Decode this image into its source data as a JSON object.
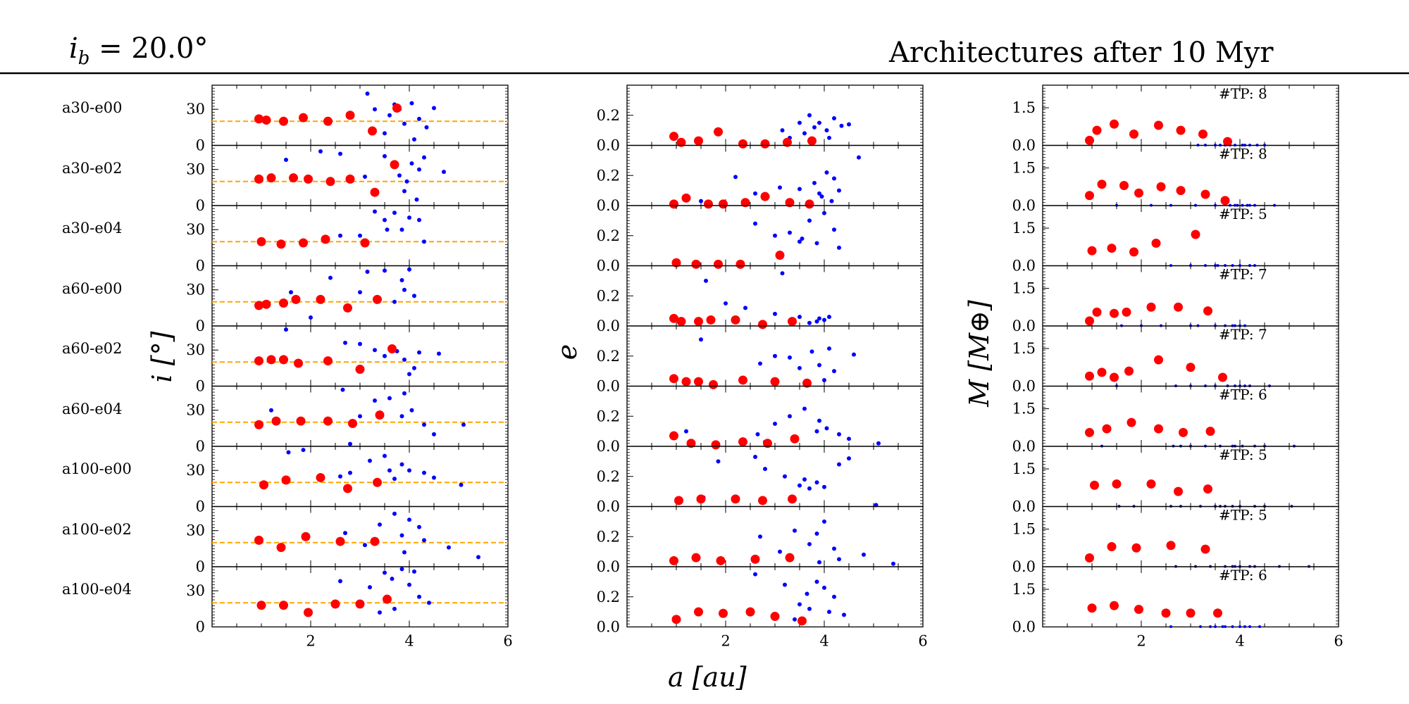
{
  "header": {
    "left_symbol": "i",
    "left_subscript": "b",
    "left_value": "= 20.0°",
    "right_title": "Architectures after 10 Myr"
  },
  "colors": {
    "planet": "#ff0000",
    "test_particle": "#0000ff",
    "reference_line": "#ffa500"
  },
  "row_labels": [
    "a30-e00",
    "a30-e02",
    "a30-e04",
    "a60-e00",
    "a60-e02",
    "a60-e04",
    "a100-e00",
    "a100-e02",
    "a100-e04"
  ],
  "axis_labels": {
    "incl_ylabel": "i [°]",
    "ecc_ylabel": "e",
    "mass_ylabel": "M [M⊕]",
    "xlabel": "a [au]"
  },
  "chart_data": {
    "type": "scatter",
    "title": "Architectures after 10 Myr",
    "subtitle": "i_b = 20.0°",
    "xlabel": "a [au]",
    "xlim": [
      0,
      6
    ],
    "xticks": [
      2,
      4,
      6
    ],
    "reference_inclination_deg": 20,
    "panels": {
      "inclination": {
        "ylabel": "i [°]",
        "ylim": [
          0,
          50
        ],
        "yticks": [
          0,
          30
        ],
        "ytick_labels": [
          "0",
          "30"
        ]
      },
      "eccentricity": {
        "ylabel": "e",
        "ylim": [
          0,
          0.4
        ],
        "yticks": [
          0,
          0.2
        ],
        "ytick_labels": [
          "0.0",
          "0.2"
        ]
      },
      "mass": {
        "ylabel": "M [M⊕]",
        "ylim": [
          0,
          2.4
        ],
        "yticks": [
          0,
          1.5
        ],
        "ytick_labels": [
          "0.0",
          "1.5"
        ]
      }
    },
    "simulations": [
      {
        "name": "a30-e00",
        "tp_label": "#TP: 8",
        "planets": [
          [
            0.95,
            22,
            0.06,
            0.2
          ],
          [
            1.1,
            21,
            0.02,
            0.6
          ],
          [
            1.45,
            20,
            0.03,
            0.85
          ],
          [
            1.85,
            23,
            0.09,
            0.45
          ],
          [
            2.35,
            20,
            0.01,
            0.8
          ],
          [
            2.8,
            25,
            0.01,
            0.6
          ],
          [
            3.25,
            12,
            0.02,
            0.45
          ],
          [
            3.75,
            31,
            0.03,
            0.15
          ]
        ],
        "tp": [
          [
            3.15,
            43,
            0.1
          ],
          [
            3.3,
            30,
            0.05
          ],
          [
            3.5,
            10,
            0.15
          ],
          [
            3.7,
            34,
            0.2
          ],
          [
            3.8,
            30,
            0.12
          ],
          [
            3.9,
            18,
            0.15
          ],
          [
            4.05,
            35,
            0.1
          ],
          [
            4.2,
            22,
            0.18
          ],
          [
            4.35,
            15,
            0.13
          ],
          [
            4.5,
            31,
            0.14
          ],
          [
            3.6,
            25,
            0.08
          ],
          [
            4.1,
            5,
            0.05
          ]
        ]
      },
      {
        "name": "a30-e02",
        "tp_label": "#TP: 8",
        "planets": [
          [
            0.95,
            22,
            0.01,
            0.4
          ],
          [
            1.2,
            23,
            0.05,
            0.85
          ],
          [
            1.65,
            23,
            0.01,
            0.8
          ],
          [
            1.95,
            22,
            0.01,
            0.5
          ],
          [
            2.4,
            20,
            0.02,
            0.75
          ],
          [
            2.8,
            22,
            0.06,
            0.6
          ],
          [
            3.3,
            11,
            0.02,
            0.45
          ],
          [
            3.7,
            34,
            0.01,
            0.2
          ]
        ],
        "tp": [
          [
            1.5,
            38,
            0.03
          ],
          [
            2.2,
            45,
            0.19
          ],
          [
            2.6,
            43,
            0.08
          ],
          [
            3.1,
            24,
            0.12
          ],
          [
            3.5,
            41,
            0.11
          ],
          [
            3.8,
            25,
            0.15
          ],
          [
            3.95,
            20,
            0.06
          ],
          [
            4.05,
            35,
            0.22
          ],
          [
            4.2,
            30,
            0.18
          ],
          [
            4.3,
            40,
            0.1
          ],
          [
            4.7,
            28,
            0.32
          ],
          [
            4.15,
            5,
            0.03
          ],
          [
            3.9,
            12,
            0.08
          ]
        ]
      },
      {
        "name": "a30-e04",
        "tp_label": "#TP: 5",
        "planets": [
          [
            1.0,
            20,
            0.02,
            0.6
          ],
          [
            1.4,
            18,
            0.01,
            0.7
          ],
          [
            1.85,
            19,
            0.01,
            0.55
          ],
          [
            2.3,
            22,
            0.01,
            0.9
          ],
          [
            3.1,
            19,
            0.07,
            1.25
          ]
        ],
        "tp": [
          [
            2.6,
            25,
            0.28
          ],
          [
            3.0,
            25,
            0.2
          ],
          [
            3.3,
            45,
            0.22
          ],
          [
            3.5,
            38,
            0.16
          ],
          [
            3.7,
            44,
            0.3
          ],
          [
            3.85,
            30,
            0.15
          ],
          [
            4.0,
            40,
            0.35
          ],
          [
            4.2,
            38,
            0.24
          ],
          [
            4.3,
            20,
            0.12
          ],
          [
            3.55,
            30,
            0.18
          ]
        ]
      },
      {
        "name": "a60-e00",
        "tp_label": "#TP: 7",
        "planets": [
          [
            0.95,
            17,
            0.05,
            0.2
          ],
          [
            1.1,
            18,
            0.03,
            0.55
          ],
          [
            1.45,
            19,
            0.03,
            0.5
          ],
          [
            1.7,
            22,
            0.04,
            0.55
          ],
          [
            2.2,
            22,
            0.04,
            0.75
          ],
          [
            2.75,
            15,
            0.01,
            0.75
          ],
          [
            3.35,
            22,
            0.03,
            0.6
          ]
        ],
        "tp": [
          [
            1.6,
            28,
            0.3
          ],
          [
            2.0,
            7,
            0.15
          ],
          [
            2.4,
            40,
            0.12
          ],
          [
            3.0,
            28,
            0.08
          ],
          [
            3.15,
            45,
            0.35
          ],
          [
            3.5,
            46,
            0.06
          ],
          [
            3.85,
            38,
            0.03
          ],
          [
            4.0,
            47,
            0.04
          ],
          [
            3.9,
            30,
            0.05
          ],
          [
            4.1,
            25,
            0.06
          ],
          [
            3.7,
            20,
            0.02
          ]
        ]
      },
      {
        "name": "a60-e02",
        "tp_label": "#TP: 7",
        "planets": [
          [
            0.95,
            21,
            0.05,
            0.4
          ],
          [
            1.2,
            22,
            0.03,
            0.55
          ],
          [
            1.45,
            22,
            0.03,
            0.35
          ],
          [
            1.75,
            19,
            0.01,
            0.6
          ],
          [
            2.35,
            21,
            0.04,
            1.05
          ],
          [
            3.0,
            14,
            0.03,
            0.75
          ],
          [
            3.65,
            31,
            0.02,
            0.35
          ]
        ],
        "tp": [
          [
            1.5,
            47,
            0.31
          ],
          [
            2.7,
            36,
            0.15
          ],
          [
            3.0,
            35,
            0.2
          ],
          [
            3.3,
            30,
            0.19
          ],
          [
            3.5,
            25,
            0.12
          ],
          [
            3.75,
            29,
            0.23
          ],
          [
            3.9,
            22,
            0.14
          ],
          [
            4.1,
            15,
            0.25
          ],
          [
            4.2,
            28,
            0.1
          ],
          [
            4.6,
            27,
            0.21
          ],
          [
            4.0,
            10,
            0.04
          ]
        ]
      },
      {
        "name": "a60-e04",
        "tp_label": "#TP: 6",
        "planets": [
          [
            0.95,
            18,
            0.07,
            0.55
          ],
          [
            1.3,
            21,
            0.02,
            0.7
          ],
          [
            1.8,
            21,
            0.01,
            0.95
          ],
          [
            2.35,
            21,
            0.03,
            0.7
          ],
          [
            2.85,
            19,
            0.02,
            0.55
          ],
          [
            3.4,
            26,
            0.05,
            0.6
          ]
        ],
        "tp": [
          [
            1.2,
            30,
            0.1
          ],
          [
            2.65,
            47,
            0.08
          ],
          [
            3.0,
            25,
            0.15
          ],
          [
            3.3,
            38,
            0.2
          ],
          [
            3.6,
            40,
            0.25
          ],
          [
            3.9,
            44,
            0.17
          ],
          [
            4.05,
            30,
            0.12
          ],
          [
            4.3,
            18,
            0.08
          ],
          [
            4.5,
            10,
            0.05
          ],
          [
            5.1,
            18,
            0.02
          ],
          [
            3.85,
            25,
            0.1
          ],
          [
            2.8,
            2,
            0.03
          ]
        ]
      },
      {
        "name": "a100-e00",
        "tp_label": "#TP: 5",
        "planets": [
          [
            1.05,
            18,
            0.04,
            0.85
          ],
          [
            1.5,
            22,
            0.05,
            0.9
          ],
          [
            2.2,
            24,
            0.05,
            0.9
          ],
          [
            2.75,
            15,
            0.04,
            0.6
          ],
          [
            3.35,
            20,
            0.05,
            0.7
          ]
        ],
        "tp": [
          [
            1.55,
            45,
            0.06
          ],
          [
            1.85,
            47,
            0.3
          ],
          [
            2.6,
            25,
            0.33
          ],
          [
            2.8,
            28,
            0.25
          ],
          [
            3.2,
            38,
            0.2
          ],
          [
            3.5,
            42,
            0.14
          ],
          [
            3.7,
            23,
            0.12
          ],
          [
            3.85,
            35,
            0.16
          ],
          [
            4.0,
            30,
            0.13
          ],
          [
            4.3,
            28,
            0.28
          ],
          [
            4.5,
            24,
            0.32
          ],
          [
            5.05,
            18,
            0.01
          ],
          [
            3.6,
            30,
            0.18
          ]
        ]
      },
      {
        "name": "a100-e02",
        "tp_label": "#TP: 5",
        "planets": [
          [
            0.95,
            22,
            0.04,
            0.35
          ],
          [
            1.4,
            16,
            0.06,
            0.8
          ],
          [
            1.9,
            25,
            0.04,
            0.75
          ],
          [
            2.6,
            21,
            0.05,
            0.85
          ],
          [
            3.3,
            21,
            0.06,
            0.7
          ]
        ],
        "tp": [
          [
            2.7,
            28,
            0.2
          ],
          [
            3.4,
            35,
            0.24
          ],
          [
            3.7,
            44,
            0.15
          ],
          [
            3.85,
            26,
            0.22
          ],
          [
            4.0,
            39,
            0.3
          ],
          [
            4.2,
            33,
            0.12
          ],
          [
            4.3,
            22,
            0.05
          ],
          [
            4.8,
            16,
            0.08
          ],
          [
            5.4,
            8,
            0.02
          ],
          [
            3.9,
            12,
            0.03
          ],
          [
            3.1,
            18,
            0.1
          ]
        ]
      },
      {
        "name": "a100-e04",
        "tp_label": "#TP: 6",
        "planets": [
          [
            1.0,
            18,
            0.05,
            0.75
          ],
          [
            1.45,
            18,
            0.1,
            0.85
          ],
          [
            1.95,
            12,
            0.09,
            0.7
          ],
          [
            2.5,
            19,
            0.1,
            0.55
          ],
          [
            3.0,
            19,
            0.07,
            0.55
          ],
          [
            3.55,
            23,
            0.04,
            0.55
          ]
        ],
        "tp": [
          [
            2.6,
            38,
            0.35
          ],
          [
            3.2,
            33,
            0.28
          ],
          [
            3.5,
            45,
            0.15
          ],
          [
            3.65,
            40,
            0.22
          ],
          [
            3.85,
            48,
            0.3
          ],
          [
            4.0,
            35,
            0.26
          ],
          [
            4.2,
            25,
            0.2
          ],
          [
            4.4,
            20,
            0.08
          ],
          [
            3.7,
            15,
            0.12
          ],
          [
            3.4,
            12,
            0.05
          ],
          [
            4.1,
            46,
            0.1
          ]
        ]
      }
    ]
  }
}
